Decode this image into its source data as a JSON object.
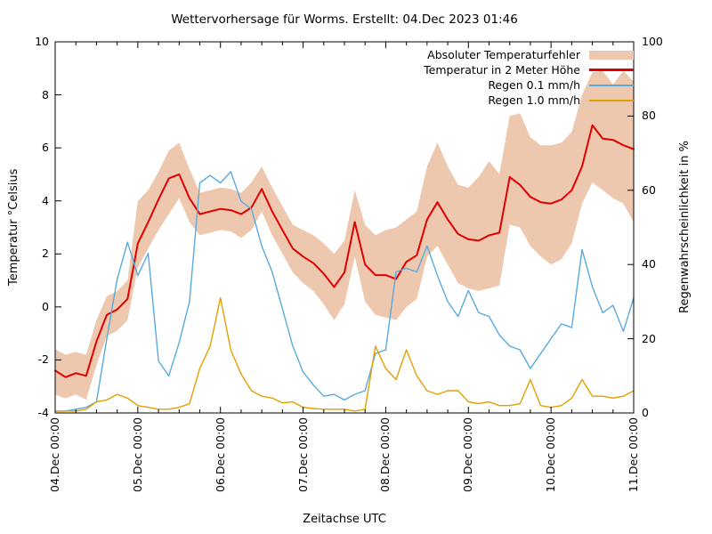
{
  "title": "Wettervorhersage für Worms. Erstellt: 04.Dec 2023 01:46",
  "x_axis": {
    "label": "Zeitachse UTC",
    "tick_labels": [
      "04.Dec 00:00",
      "05.Dec 00:00",
      "06.Dec 00:00",
      "07.Dec 00:00",
      "08.Dec 00:00",
      "09.Dec 00:00",
      "10.Dec 00:00",
      "11.Dec 00:00"
    ]
  },
  "y_left": {
    "label": "Temperatur °Celsius",
    "ticks": [
      10,
      8,
      6,
      4,
      2,
      0,
      -2,
      -4
    ],
    "range": [
      -4,
      10
    ]
  },
  "y_right": {
    "label": "Regenwahrscheinlichkeit in %",
    "ticks": [
      100,
      80,
      60,
      40,
      20,
      0
    ],
    "range": [
      0,
      100
    ]
  },
  "legend": [
    {
      "label": "Absoluter Temperaturfehler",
      "sample": "band",
      "color": "#edc8af"
    },
    {
      "label": "Temperatur in 2 Meter Höhe",
      "sample": "line",
      "color": "#e10000"
    },
    {
      "label": "Regen 0.1 mm/h",
      "sample": "line",
      "color": "#5aa9dc"
    },
    {
      "label": "Regen 1.0 mm/h",
      "sample": "line",
      "color": "#e2a000"
    }
  ],
  "chart_data": {
    "type": "line",
    "x_unit": "hours since 04.Dec 2023 00:00 UTC",
    "x": [
      0,
      3,
      6,
      9,
      12,
      15,
      18,
      21,
      24,
      27,
      30,
      33,
      36,
      39,
      42,
      45,
      48,
      51,
      54,
      57,
      60,
      63,
      66,
      69,
      72,
      75,
      78,
      81,
      84,
      87,
      90,
      93,
      96,
      99,
      102,
      105,
      108,
      111,
      114,
      117,
      120,
      123,
      126,
      129,
      132,
      135,
      138,
      141,
      144,
      147,
      150,
      153,
      156,
      159,
      162,
      165,
      168
    ],
    "xlim_hours": [
      0,
      168
    ],
    "ylim_left": [
      -4,
      10
    ],
    "ylim_right": [
      0,
      100
    ],
    "grid": false,
    "legend_position": "top-right-inside",
    "series": [
      {
        "name": "Absoluter Temperaturfehler",
        "type": "band",
        "axis": "left",
        "color": "#edc8af",
        "upper": [
          -1.6,
          -1.8,
          -1.7,
          -1.8,
          -0.5,
          0.4,
          0.6,
          1.0,
          4.0,
          4.4,
          5.1,
          5.9,
          6.2,
          5.2,
          4.3,
          4.4,
          4.5,
          4.45,
          4.3,
          4.7,
          5.3,
          4.5,
          3.8,
          3.1,
          2.9,
          2.7,
          2.4,
          2.0,
          2.5,
          4.4,
          3.1,
          2.7,
          2.9,
          3.0,
          3.3,
          3.6,
          5.3,
          6.2,
          5.3,
          4.6,
          4.5,
          4.9,
          5.5,
          5.0,
          7.2,
          7.3,
          6.4,
          6.1,
          6.1,
          6.2,
          6.6,
          8.0,
          8.85,
          8.9,
          8.4,
          8.9,
          8.5
        ],
        "lower": [
          -3.3,
          -3.45,
          -3.3,
          -3.5,
          -2.2,
          -1.1,
          -0.9,
          -0.5,
          1.5,
          2.2,
          2.9,
          3.5,
          4.1,
          3.2,
          2.7,
          2.8,
          2.9,
          2.85,
          2.6,
          2.9,
          3.6,
          2.7,
          2.0,
          1.3,
          0.9,
          0.6,
          0.1,
          -0.5,
          0.1,
          1.9,
          0.2,
          -0.3,
          -0.4,
          -0.5,
          0.0,
          0.3,
          1.9,
          2.3,
          1.6,
          0.9,
          0.7,
          0.6,
          0.7,
          0.8,
          3.1,
          3.0,
          2.3,
          1.9,
          1.6,
          1.8,
          2.4,
          3.9,
          4.7,
          4.4,
          4.1,
          3.9,
          3.2
        ]
      },
      {
        "name": "Temperatur in 2 Meter Höhe",
        "type": "line",
        "axis": "left",
        "color": "#e10000",
        "width": 2,
        "values": [
          -2.4,
          -2.65,
          -2.5,
          -2.6,
          -1.3,
          -0.3,
          -0.1,
          0.3,
          2.4,
          3.2,
          4.05,
          4.85,
          5.0,
          4.1,
          3.5,
          3.6,
          3.7,
          3.65,
          3.5,
          3.75,
          4.45,
          3.6,
          2.9,
          2.2,
          1.9,
          1.65,
          1.25,
          0.75,
          1.3,
          3.2,
          1.6,
          1.2,
          1.2,
          1.05,
          1.7,
          1.95,
          3.3,
          3.95,
          3.3,
          2.75,
          2.55,
          2.5,
          2.7,
          2.8,
          4.9,
          4.6,
          4.15,
          3.95,
          3.9,
          4.05,
          4.4,
          5.3,
          6.85,
          6.35,
          6.3,
          6.1,
          5.95
        ]
      },
      {
        "name": "Regen 0.1 mm/h",
        "type": "line",
        "axis": "right",
        "color": "#5aa9dc",
        "width": 1.4,
        "values": [
          0.5,
          0.5,
          1,
          1.5,
          3,
          20,
          36,
          46,
          37,
          43,
          14,
          10,
          19,
          30,
          62,
          64,
          62,
          65,
          57,
          55,
          45,
          38,
          28,
          18,
          11,
          7.5,
          4.5,
          5,
          3.5,
          5,
          6,
          16,
          17,
          38,
          39,
          38,
          45,
          37,
          30,
          26,
          33,
          27,
          26,
          21,
          18,
          17,
          12,
          16,
          20,
          24,
          23,
          44,
          34,
          27,
          29,
          22,
          31
        ]
      },
      {
        "name": "Regen 1.0 mm/h",
        "type": "line",
        "axis": "right",
        "color": "#e2a000",
        "width": 1.4,
        "values": [
          0.5,
          0.5,
          0.5,
          1,
          3,
          3.5,
          5,
          4,
          2,
          1.5,
          1,
          1,
          1.5,
          2.5,
          12,
          18,
          31,
          17,
          10.5,
          6,
          4.5,
          4,
          2.7,
          3,
          1.5,
          1.2,
          1,
          1,
          1,
          0.5,
          1,
          18,
          12,
          9,
          17,
          10,
          6,
          5,
          6,
          6,
          3,
          2.5,
          3,
          2,
          2,
          2.5,
          9,
          2,
          1.5,
          2,
          4,
          9,
          4.5,
          4.5,
          4,
          4.5,
          6
        ]
      }
    ]
  }
}
